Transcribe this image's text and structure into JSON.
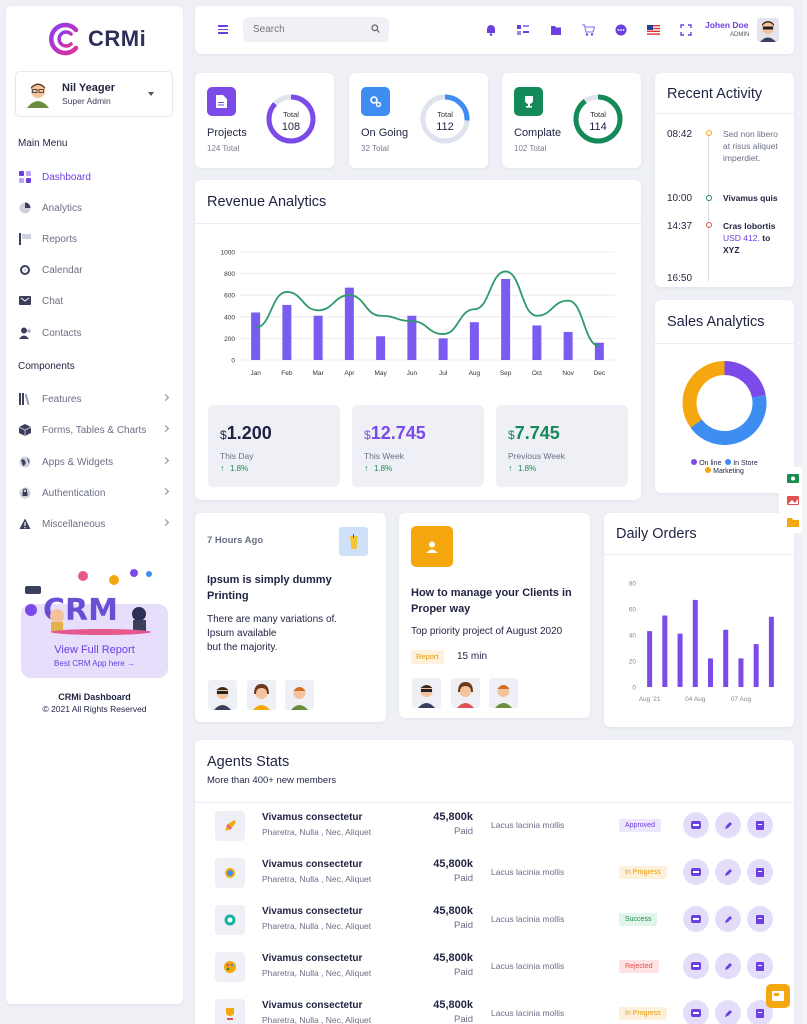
{
  "brand": {
    "name": "CRMi",
    "accent": "#6c3fe0"
  },
  "sidebar": {
    "profile": {
      "name": "Nil Yeager",
      "role": "Super Admin"
    },
    "main_menu_title": "Main Menu",
    "main_items": [
      {
        "label": "Dashboard",
        "icon": "dashboard-icon"
      },
      {
        "label": "Analytics",
        "icon": "pie-chart-icon"
      },
      {
        "label": "Reports",
        "icon": "flag-icon"
      },
      {
        "label": "Calendar",
        "icon": "calendar-icon"
      },
      {
        "label": "Chat",
        "icon": "chat-icon"
      },
      {
        "label": "Contacts",
        "icon": "add-user-icon"
      }
    ],
    "components_title": "Components",
    "component_items": [
      {
        "label": "Features",
        "icon": "books-icon"
      },
      {
        "label": "Forms, Tables & Charts",
        "icon": "box-icon"
      },
      {
        "label": "Apps & Widgets",
        "icon": "globe-icon"
      },
      {
        "label": "Authentication",
        "icon": "lock-icon"
      },
      {
        "label": "Miscellaneous",
        "icon": "warning-icon"
      }
    ],
    "promo": {
      "illustration_text": "CRM",
      "link": "View Full Report",
      "sub": "Best CRM App here →"
    },
    "footer": {
      "title": "CRMi Dashboard",
      "copyright": "© 2021 All Rights Reserved"
    }
  },
  "header": {
    "search_placeholder": "Search",
    "user": {
      "name": "Johen Doe",
      "role": "ADMIN"
    }
  },
  "stats": [
    {
      "label": "Projects",
      "sub": "124 Total",
      "ring_label": "Total",
      "ring_value": "108",
      "color": "#7b4ae8",
      "fill": 0.87
    },
    {
      "label": "On Going",
      "sub": "32 Total",
      "ring_label": "Total",
      "ring_value": "112",
      "color": "#3d8ef0",
      "fill": 0.26
    },
    {
      "label": "Complate",
      "sub": "102 Total",
      "ring_label": "Total",
      "ring_value": "114",
      "color": "#138a57",
      "fill": 0.9
    }
  ],
  "recent": {
    "title": "Recent Activity",
    "items": [
      {
        "time": "08:42",
        "text": "Sed non libero at risus aliquet imperdiet.",
        "dot": "#f5a70f"
      },
      {
        "time": "10:00",
        "text": "Vivamus quis",
        "dot": "#1a8e4f"
      },
      {
        "time": "14:37",
        "text_a": "Cras lobortis",
        "text_b": "USD 412.",
        "text_c": "to XYZ",
        "dot": "#e05252"
      },
      {
        "time": "16:50",
        "text": "",
        "dot": "#6c3fe0"
      }
    ]
  },
  "revenue": {
    "title": "Revenue Analytics",
    "tiles": [
      {
        "currency": "$",
        "value": "1.200",
        "label": "This Day",
        "pct": "1.8%",
        "color": "#1f2342"
      },
      {
        "currency": "$",
        "value": "12.745",
        "label": "This Week",
        "pct": "1.8%",
        "color": "#7b4ae8"
      },
      {
        "currency": "$",
        "value": "7.745",
        "label": "Previous Week",
        "pct": "1.8%",
        "color": "#138a57"
      }
    ]
  },
  "sales": {
    "title": "Sales Analytics",
    "legend": [
      {
        "label": "On line",
        "color": "#7b4ae8"
      },
      {
        "label": "In Store",
        "color": "#3d8ef0"
      },
      {
        "label": "Marketing",
        "color": "#f5a70f"
      }
    ]
  },
  "post1": {
    "time": "7 Hours Ago",
    "title": "Ipsum is simply dummy Printing",
    "body_lines": [
      "There are many variations of.",
      "Ipsum available",
      "but the majority."
    ]
  },
  "post2": {
    "title": "How to manage your Clients in Proper way",
    "body": "Top priority project of August 2020",
    "tag": "Report",
    "duration": "15 min"
  },
  "orders": {
    "title": "Daily Orders"
  },
  "agents": {
    "title": "Agents Stats",
    "subtitle": "More than 400+ new members",
    "rows": [
      {
        "name": "Vivamus consectetur",
        "sub": "Pharetra, Nulla , Nec, Aliquet",
        "amount": "45,800k",
        "paid": "Paid",
        "note": "Lacus lacinia mollis",
        "status": "Approved",
        "status_bg": "#ece7fb",
        "status_fg": "#6c3fe0",
        "icon": "pen-icon"
      },
      {
        "name": "Vivamus consectetur",
        "sub": "Pharetra, Nulla , Nec, Aliquet",
        "amount": "45,800k",
        "paid": "Paid",
        "note": "Lacus lacinia mollis",
        "status": "In Progress",
        "status_bg": "#fdf1dc",
        "status_fg": "#e39b0c",
        "icon": "gear-icon"
      },
      {
        "name": "Vivamus consectetur",
        "sub": "Pharetra, Nulla , Nec, Aliquet",
        "amount": "45,800k",
        "paid": "Paid",
        "note": "Lacus lacinia mollis",
        "status": "Success",
        "status_bg": "#e2f5ea",
        "status_fg": "#1a8e4f",
        "icon": "cog-icon"
      },
      {
        "name": "Vivamus consectetur",
        "sub": "Pharetra, Nulla , Nec, Aliquet",
        "amount": "45,800k",
        "paid": "Paid",
        "note": "Lacus lacinia mollis",
        "status": "Rejected",
        "status_bg": "#fde3e3",
        "status_fg": "#e05252",
        "icon": "palette-icon"
      },
      {
        "name": "Vivamus consectetur",
        "sub": "Pharetra, Nulla , Nec, Aliquet",
        "amount": "45,800k",
        "paid": "Paid",
        "note": "Lacus lacinia mollis",
        "status": "In Progress",
        "status_bg": "#fdf1dc",
        "status_fg": "#e39b0c",
        "icon": "trophy-icon"
      }
    ]
  },
  "chart_data": [
    {
      "type": "bar",
      "title": "Revenue Analytics",
      "categories": [
        "Jan",
        "Feb",
        "Mar",
        "Apr",
        "May",
        "Jun",
        "Jul",
        "Aug",
        "Sep",
        "Oct",
        "Nov",
        "Dec"
      ],
      "series": [
        {
          "type": "bar",
          "values": [
            440,
            510,
            410,
            670,
            220,
            410,
            200,
            350,
            750,
            320,
            260,
            160
          ],
          "color": "#7b5cf0"
        },
        {
          "type": "line",
          "values": [
            300,
            630,
            460,
            600,
            410,
            360,
            240,
            470,
            820,
            410,
            550,
            130
          ],
          "color": "#2e9a6c"
        }
      ],
      "yticks": [
        "0",
        "200",
        "400",
        "600",
        "800",
        "1000"
      ],
      "ylim": [
        0,
        1000
      ]
    },
    {
      "type": "pie",
      "title": "Sales Analytics",
      "categories": [
        "On line",
        "In Store",
        "Marketing"
      ],
      "values": [
        22,
        43,
        35
      ]
    },
    {
      "type": "bar",
      "title": "Daily Orders",
      "values": [
        43,
        55,
        41,
        67,
        22,
        44,
        22,
        33,
        54
      ],
      "xticks": [
        "Aug '21",
        "04 Aug",
        "07 Aug"
      ],
      "yticks": [
        "0",
        "20",
        "40",
        "60",
        "80"
      ],
      "ylim": [
        0,
        80
      ]
    }
  ]
}
